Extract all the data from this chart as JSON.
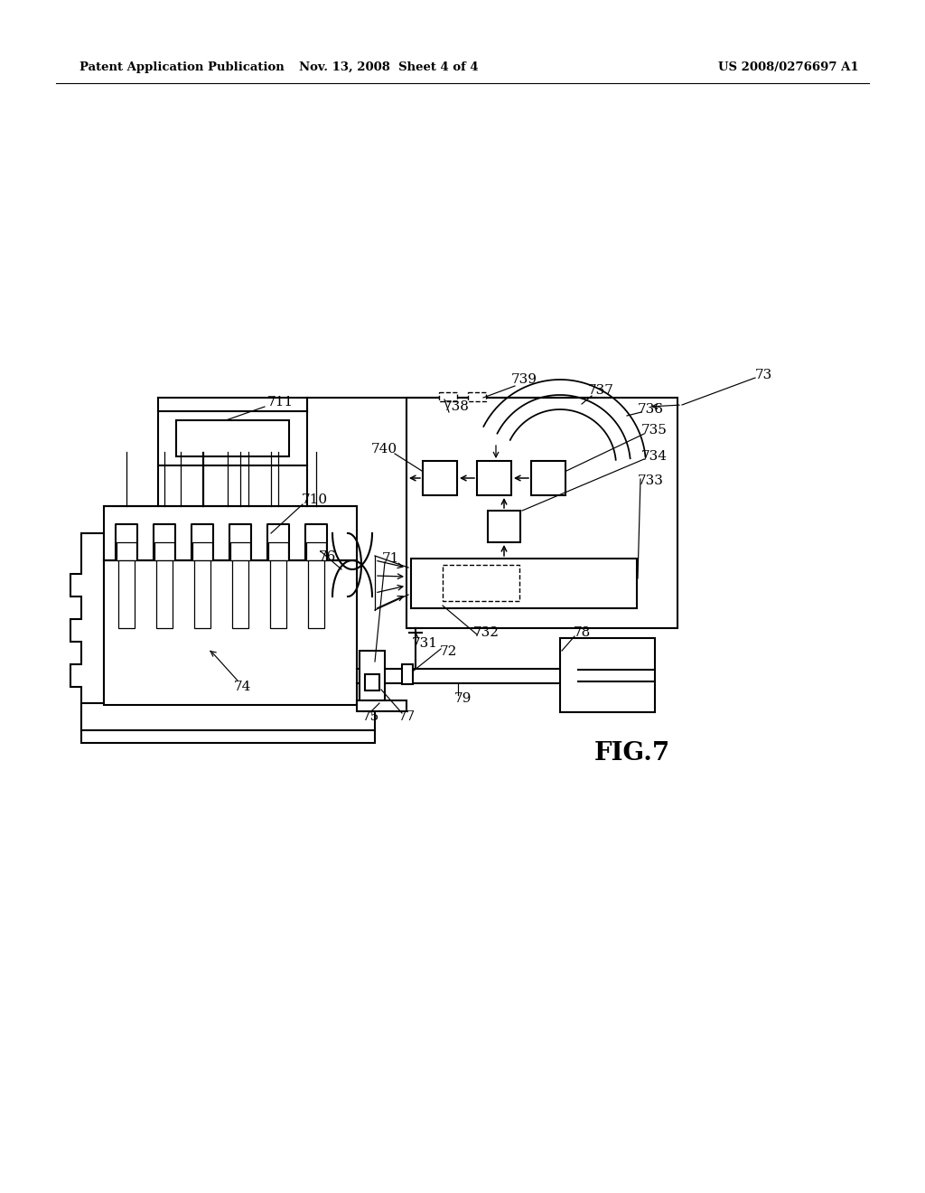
{
  "bg_color": "#ffffff",
  "header_left": "Patent Application Publication",
  "header_mid": "Nov. 13, 2008  Sheet 4 of 4",
  "header_right": "US 2008/0276697 A1",
  "fig_label": "FIG.7",
  "lw": 1.5
}
